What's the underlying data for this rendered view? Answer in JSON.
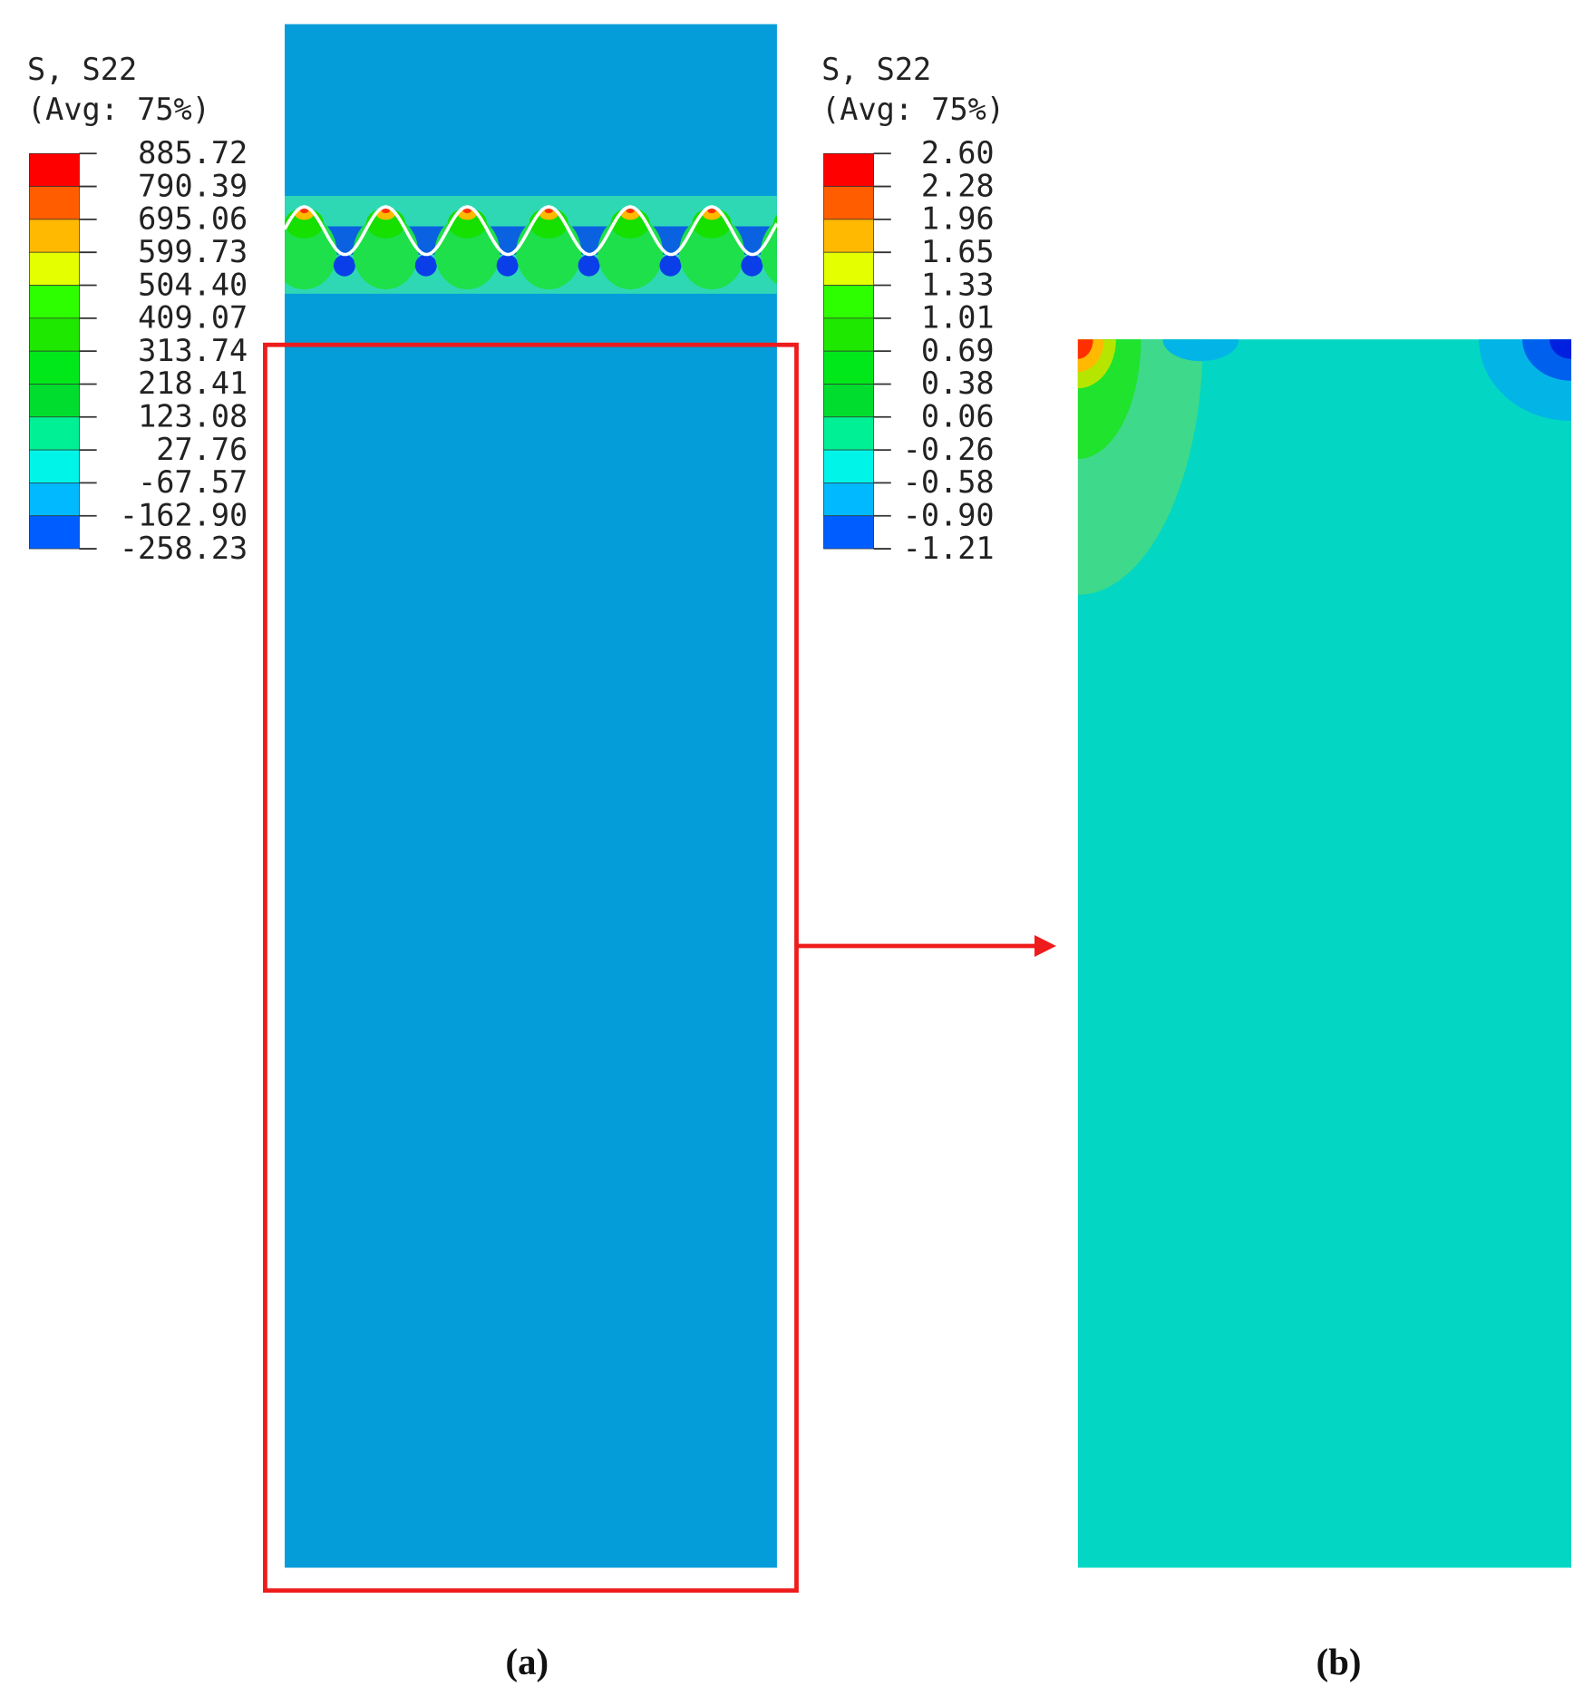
{
  "legends": [
    {
      "title": "S, S22",
      "subtitle": "(Avg: 75%)",
      "labels": [
        "885.72",
        "790.39",
        "695.06",
        "599.73",
        "504.40",
        "409.07",
        "313.74",
        "218.41",
        "123.08",
        "27.76",
        "-67.57",
        "-162.90",
        "-258.23"
      ]
    },
    {
      "title": "S, S22",
      "subtitle": "(Avg: 75%)",
      "labels": [
        "2.60",
        "2.28",
        "1.96",
        "1.65",
        "1.33",
        "1.01",
        "0.69",
        "0.38",
        "0.06",
        "-0.26",
        "-0.58",
        "-0.90",
        "-1.21"
      ]
    }
  ],
  "captions": [
    "(a)",
    "(b)"
  ]
}
